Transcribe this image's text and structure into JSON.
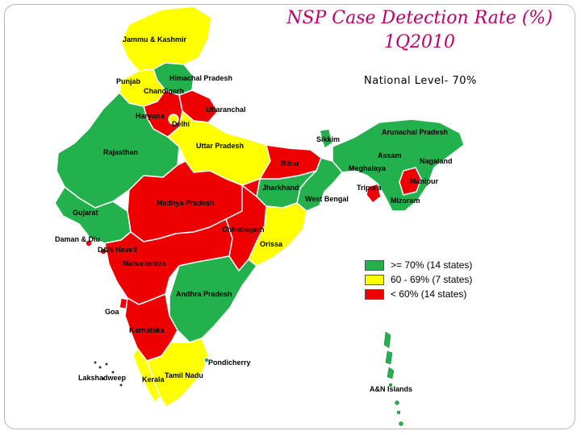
{
  "header": {
    "title_line1": "NSP Case Detection Rate (%)",
    "title_line2": "1Q2010",
    "national_level": "National Level- 70%"
  },
  "colors": {
    "green": "#22b14c",
    "yellow": "#ffff00",
    "red": "#ee0000",
    "title": "#c0006a"
  },
  "legend": [
    {
      "label": ">= 70% (14 states)",
      "color": "#22b14c"
    },
    {
      "label": "60 - 69% (7 states)",
      "color": "#ffff00"
    },
    {
      "label": "< 60% (14 states)",
      "color": "#ee0000"
    }
  ],
  "states": {
    "jammu_kashmir": "Jammu & Kashmir",
    "himachal": "Himachal Pradesh",
    "punjab": "Punjab",
    "chandigarh": "Chandigarh",
    "uttaranchal": "Uttaranchal",
    "haryana": "Haryana",
    "delhi": "Delhi",
    "rajasthan": "Rajasthan",
    "uttar_pradesh": "Uttar Pradesh",
    "bihar": "Bihar",
    "sikkim": "Sikkim",
    "arunachal": "Arunachal Pradesh",
    "assam": "Assam",
    "nagaland": "Nagaland",
    "meghalaya": "Meghalaya",
    "manipur": "Manipur",
    "tripura": "Tripura",
    "mizoram": "Mizoram",
    "jharkhand": "Jharkhand",
    "west_bengal": "West Bengal",
    "madhya_pradesh": "Madhya Pradesh",
    "gujarat": "Gujarat",
    "chhatisgarh": "Chhatisgarh",
    "daman_diu": "Daman & Diu",
    "dnh": "D&N Haveli",
    "orissa": "Orissa",
    "maharashtra": "Maharashtra",
    "andhra": "Andhra Pradesh",
    "goa": "Goa",
    "karnataka": "Karnataka",
    "pondicherry": "Pondicherry",
    "lakshadweep": "Lakshadweep",
    "kerala": "Kerala",
    "tamil_nadu": "Tamil Nadu",
    "an_islands": "A&N Islands"
  }
}
